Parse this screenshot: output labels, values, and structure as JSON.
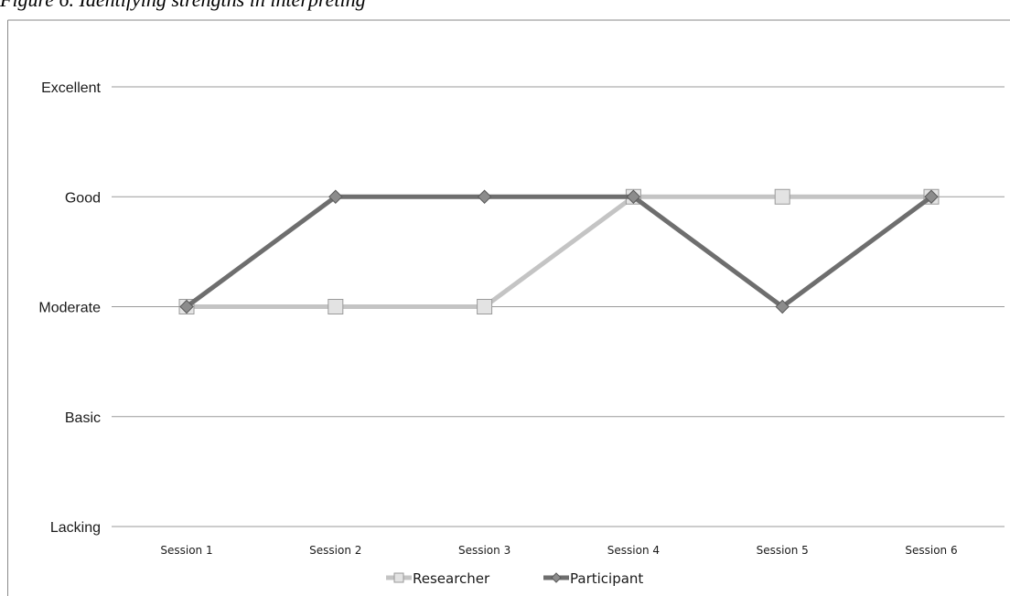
{
  "caption": "Figure 6. Identifying strengths in interpreting",
  "colors": {
    "gridline": "#9a9a9a",
    "frame": "#8a8a8a",
    "researcher_line": "#c4c4c4",
    "researcher_marker_fill": "#e3e3e3",
    "researcher_marker_stroke": "#9a9a9a",
    "participant_line": "#6e6e6e",
    "participant_marker_fill": "#8c8c8c",
    "participant_marker_stroke": "#5a5a5a"
  },
  "chart_data": {
    "type": "line",
    "title": "",
    "xlabel": "",
    "ylabel": "",
    "categories": [
      "Session 1",
      "Session 2",
      "Session 3",
      "Session 4",
      "Session 5",
      "Session 6"
    ],
    "y_levels": [
      "Lacking",
      "Basic",
      "Moderate",
      "Good",
      "Excellent"
    ],
    "ylim": [
      0,
      4
    ],
    "grid": true,
    "legend_position": "bottom",
    "series": [
      {
        "name": "Researcher",
        "marker": "square",
        "values": [
          "Moderate",
          "Moderate",
          "Moderate",
          "Good",
          "Good",
          "Good"
        ]
      },
      {
        "name": "Participant",
        "marker": "diamond",
        "values": [
          "Moderate",
          "Good",
          "Good",
          "Good",
          "Moderate",
          "Good"
        ]
      }
    ]
  }
}
